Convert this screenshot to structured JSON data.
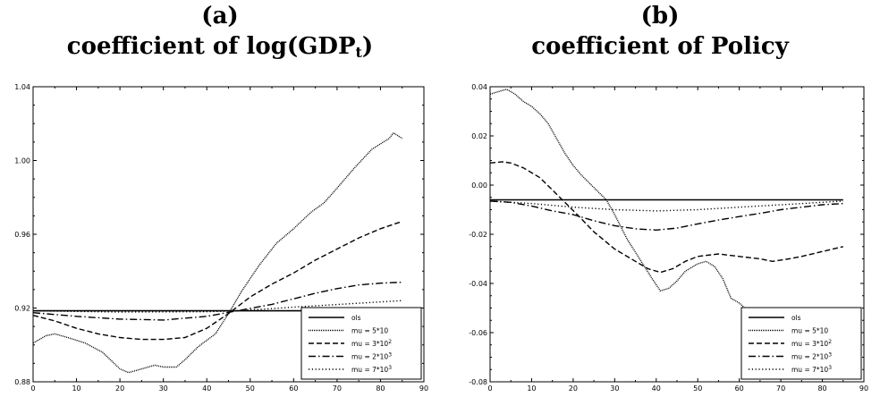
{
  "chart_data": [
    {
      "type": "line",
      "panel_label": "(a)",
      "title_prefix": "coefficient of log(GDP",
      "title_sub": "t",
      "title_suffix": ")",
      "xlim": [
        0,
        90
      ],
      "ylim": [
        0.88,
        1.04
      ],
      "x_ticks": [
        "0",
        "10",
        "20",
        "30",
        "40",
        "50",
        "60",
        "70",
        "80",
        "90"
      ],
      "y_ticks": [
        "0.88",
        "0.92",
        "0.96",
        "1.00",
        "1.04"
      ],
      "y_tick_values": [
        0.88,
        0.92,
        0.96,
        1.0,
        1.04
      ],
      "legend_position": "bottom-right",
      "series": [
        {
          "name": "ols",
          "style": "solid",
          "x": [
            0,
            85
          ],
          "y": [
            0.9185,
            0.9185
          ]
        },
        {
          "name": "mu = 5*10",
          "style": "fine-dot",
          "x": [
            0,
            3,
            5,
            8,
            12,
            16,
            20,
            22,
            25,
            28,
            30,
            33,
            35,
            38,
            42,
            45,
            48,
            52,
            56,
            60,
            64,
            67,
            70,
            74,
            78,
            80,
            82,
            83,
            85
          ],
          "y": [
            0.901,
            0.905,
            0.906,
            0.904,
            0.901,
            0.896,
            0.887,
            0.885,
            0.887,
            0.889,
            0.888,
            0.888,
            0.892,
            0.899,
            0.906,
            0.917,
            0.929,
            0.943,
            0.955,
            0.963,
            0.972,
            0.977,
            0.985,
            0.996,
            1.006,
            1.009,
            1.012,
            1.015,
            1.012
          ]
        },
        {
          "name": "mu = 3*10^2",
          "style": "dash",
          "x": [
            0,
            5,
            10,
            15,
            20,
            25,
            30,
            35,
            40,
            45,
            50,
            55,
            60,
            65,
            70,
            75,
            80,
            85
          ],
          "y": [
            0.916,
            0.913,
            0.909,
            0.906,
            0.904,
            0.903,
            0.903,
            0.904,
            0.909,
            0.917,
            0.926,
            0.933,
            0.939,
            0.946,
            0.952,
            0.958,
            0.963,
            0.967
          ]
        },
        {
          "name": "mu = 2*10^3",
          "style": "dash-dot",
          "x": [
            0,
            10,
            20,
            30,
            40,
            47,
            55,
            60,
            65,
            70,
            75,
            80,
            85
          ],
          "y": [
            0.9175,
            0.9155,
            0.914,
            0.9135,
            0.9155,
            0.9185,
            0.922,
            0.925,
            0.928,
            0.9305,
            0.9325,
            0.9335,
            0.934
          ]
        },
        {
          "name": "mu = 7*10^3",
          "style": "sparse-dot",
          "x": [
            0,
            20,
            40,
            47,
            60,
            85
          ],
          "y": [
            0.9185,
            0.9178,
            0.918,
            0.9185,
            0.9205,
            0.924
          ]
        }
      ],
      "legend": [
        {
          "label": "ols",
          "style": "solid"
        },
        {
          "label": "mu = 5*10",
          "style": "fine-dot"
        },
        {
          "label": "mu = 3*10",
          "sup": "2",
          "style": "dash"
        },
        {
          "label": "mu = 2*10",
          "sup": "3",
          "style": "dash-dot"
        },
        {
          "label": "mu = 7*10",
          "sup": "3",
          "style": "sparse-dot"
        }
      ]
    },
    {
      "type": "line",
      "panel_label": "(b)",
      "title_prefix": "coefficient of Policy",
      "title_sub": "",
      "title_suffix": "",
      "xlim": [
        0,
        90
      ],
      "ylim": [
        -0.08,
        0.04
      ],
      "x_ticks": [
        "0",
        "10",
        "20",
        "30",
        "40",
        "50",
        "60",
        "70",
        "80",
        "90"
      ],
      "y_ticks": [
        "-0.08",
        "-0.06",
        "-0.04",
        "-0.02",
        "0.00",
        "0.02",
        "0.04"
      ],
      "y_tick_values": [
        -0.08,
        -0.06,
        -0.04,
        -0.02,
        0.0,
        0.02,
        0.04
      ],
      "legend_position": "bottom-right",
      "series": [
        {
          "name": "ols",
          "style": "solid",
          "x": [
            0,
            85
          ],
          "y": [
            -0.006,
            -0.006
          ]
        },
        {
          "name": "mu = 5*10",
          "style": "fine-dot",
          "x": [
            0,
            2,
            4,
            6,
            8,
            10,
            12,
            14,
            16,
            18,
            20,
            22,
            25,
            28,
            30,
            33,
            36,
            39,
            41,
            43,
            45,
            47,
            50,
            52,
            54,
            56,
            58,
            60,
            62,
            64,
            66
          ],
          "y": [
            0.037,
            0.038,
            0.039,
            0.037,
            0.034,
            0.032,
            0.029,
            0.025,
            0.019,
            0.013,
            0.008,
            0.004,
            -0.001,
            -0.006,
            -0.012,
            -0.022,
            -0.03,
            -0.038,
            -0.043,
            -0.042,
            -0.039,
            -0.035,
            -0.032,
            -0.031,
            -0.033,
            -0.038,
            -0.046,
            -0.048,
            -0.051,
            -0.056,
            -0.061
          ]
        },
        {
          "name": "mu = 3*10^2",
          "style": "dash",
          "x": [
            0,
            3,
            5,
            8,
            12,
            15,
            18,
            21,
            25,
            30,
            35,
            38,
            41,
            44,
            47,
            50,
            55,
            60,
            65,
            68,
            72,
            75,
            80,
            85
          ],
          "y": [
            0.009,
            0.0095,
            0.009,
            0.007,
            0.003,
            -0.002,
            -0.007,
            -0.012,
            -0.019,
            -0.026,
            -0.031,
            -0.034,
            -0.0355,
            -0.034,
            -0.031,
            -0.029,
            -0.028,
            -0.029,
            -0.03,
            -0.031,
            -0.03,
            -0.029,
            -0.027,
            -0.025
          ]
        },
        {
          "name": "mu = 2*10^3",
          "style": "dash-dot",
          "x": [
            0,
            5,
            10,
            15,
            20,
            25,
            30,
            35,
            40,
            45,
            50,
            55,
            60,
            65,
            70,
            75,
            80,
            85
          ],
          "y": [
            -0.0065,
            -0.007,
            -0.0085,
            -0.0105,
            -0.012,
            -0.0145,
            -0.0165,
            -0.0178,
            -0.0183,
            -0.0175,
            -0.0158,
            -0.0142,
            -0.0128,
            -0.0115,
            -0.01,
            -0.009,
            -0.008,
            -0.0075
          ]
        },
        {
          "name": "mu = 7*10^3",
          "style": "sparse-dot",
          "x": [
            0,
            10,
            20,
            30,
            40,
            50,
            60,
            70,
            80,
            85
          ],
          "y": [
            -0.0065,
            -0.0075,
            -0.009,
            -0.01,
            -0.0105,
            -0.01,
            -0.009,
            -0.008,
            -0.007,
            -0.0065
          ]
        }
      ],
      "legend": [
        {
          "label": "ols",
          "style": "solid"
        },
        {
          "label": "mu = 5*10",
          "style": "fine-dot"
        },
        {
          "label": "mu = 3*10",
          "sup": "2",
          "style": "dash"
        },
        {
          "label": "mu = 2*10",
          "sup": "3",
          "style": "dash-dot"
        },
        {
          "label": "mu = 7*10",
          "sup": "3",
          "style": "sparse-dot"
        }
      ]
    }
  ]
}
